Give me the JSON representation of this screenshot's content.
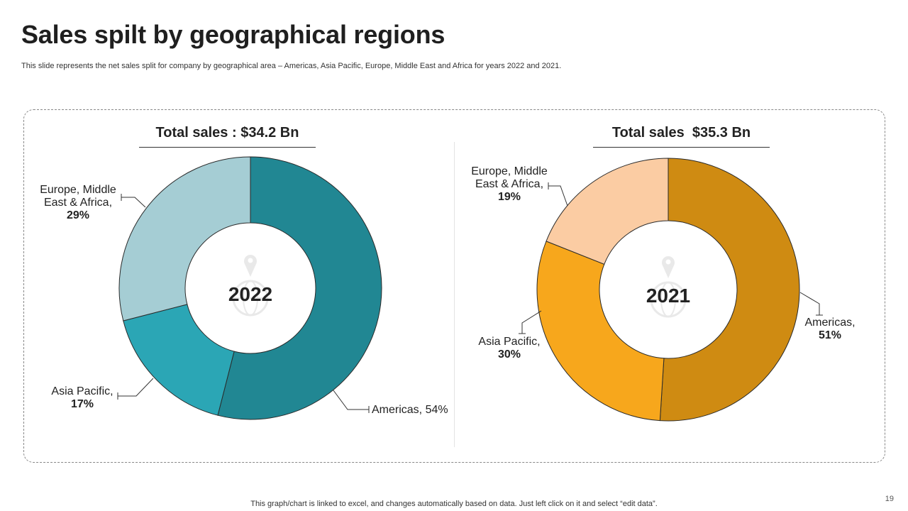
{
  "slide": {
    "title": "Sales spilt by geographical regions",
    "subtitle": "This slide represents the net sales split for company by geographical area – Americas, Asia Pacific, Europe, Middle East and Africa for years 2022 and 2021.",
    "footer": "This graph/chart is linked to excel,  and changes automatically based on data. Just left click on it and select “edit data”.",
    "page_number": "19"
  },
  "chart_data": [
    {
      "type": "pie",
      "variant": "donut",
      "title": "Total sales : $34.2 Bn",
      "center_label": "2022",
      "categories": [
        "Americas",
        "Asia Pacific",
        "Europe, Middle East & Africa"
      ],
      "values": [
        54,
        17,
        29
      ],
      "unit": "%",
      "colors": [
        "#218793",
        "#2ba6b5",
        "#a5cdd4"
      ],
      "labels": [
        {
          "lines": [
            "Americas, 54%"
          ],
          "bold_line": -1
        },
        {
          "lines": [
            "Asia Pacific,",
            "17%"
          ],
          "bold_line": 1
        },
        {
          "lines": [
            "Europe, Middle",
            "East & Africa,",
            "29%"
          ],
          "bold_line": 2
        }
      ]
    },
    {
      "type": "pie",
      "variant": "donut",
      "title": "Total sales  $35.3 Bn",
      "center_label": "2021",
      "categories": [
        "Americas",
        "Asia Pacific",
        "Europe, Middle East & Africa"
      ],
      "values": [
        51,
        30,
        19
      ],
      "unit": "%",
      "colors": [
        "#cf8b12",
        "#f7a71c",
        "#fbcca3"
      ],
      "labels": [
        {
          "lines": [
            "Americas,",
            "51%"
          ],
          "bold_line": 1
        },
        {
          "lines": [
            "Asia Pacific,",
            "30%"
          ],
          "bold_line": 1
        },
        {
          "lines": [
            "Europe, Middle",
            "East & Africa,",
            "19%"
          ],
          "bold_line": 2
        }
      ]
    }
  ]
}
